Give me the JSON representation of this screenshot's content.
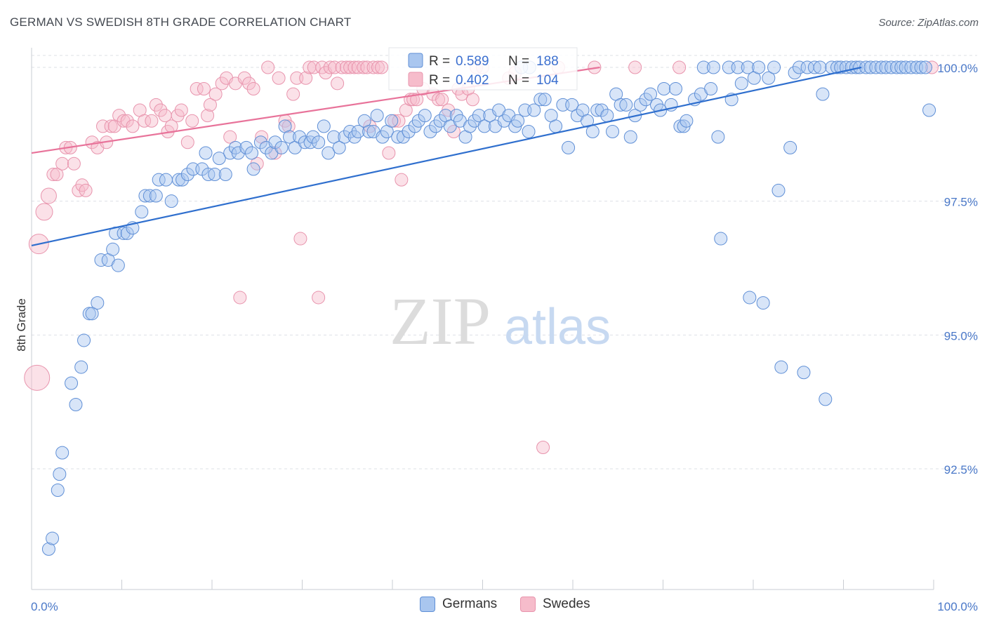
{
  "title": "GERMAN VS SWEDISH 8TH GRADE CORRELATION CHART",
  "source": "Source: ZipAtlas.com",
  "watermark": {
    "zip": "ZIP",
    "atlas": "atlas"
  },
  "colors": {
    "germans_fill": "#a9c6ef",
    "germans_stroke": "#5f8fd6",
    "germans_line": "#2f6fce",
    "swedes_fill": "#f6bccb",
    "swedes_stroke": "#e894ad",
    "swedes_line": "#e8739a",
    "tick_text": "#4a78c8",
    "grid": "#dde0e6"
  },
  "legend": {
    "germans": {
      "r_label": "R =",
      "r_value": "0.589",
      "n_label": "N =",
      "n_value": "188"
    },
    "swedes": {
      "r_label": "R =",
      "r_value": "0.402",
      "n_label": "N =",
      "n_value": "104"
    }
  },
  "bottom_legend": {
    "germans": "Germans",
    "swedes": "Swedes"
  },
  "chart_data": {
    "type": "scatter",
    "title": "GERMAN VS SWEDISH 8TH GRADE CORRELATION CHART",
    "ylabel": "8th Grade",
    "xlabel": "",
    "xlim": [
      0,
      100
    ],
    "ylim": [
      90.25,
      100.35
    ],
    "x_tick_labels": [
      {
        "value": 0,
        "label": "0.0%"
      },
      {
        "value": 100,
        "label": "100.0%"
      }
    ],
    "y_ticks": [
      {
        "value": 100,
        "label": "100.0%"
      },
      {
        "value": 97.5,
        "label": "97.5%"
      },
      {
        "value": 95,
        "label": "95.0%"
      },
      {
        "value": 92.5,
        "label": "92.5%"
      }
    ],
    "grid": "horizontal dashed",
    "legend_position": "top-center",
    "series": [
      {
        "name": "Germans",
        "r": 0.589,
        "n": 188,
        "trendline": [
          [
            0,
            96.67
          ],
          [
            92,
            100.0
          ]
        ],
        "points": [
          [
            1.9,
            91.0
          ],
          [
            2.3,
            91.2
          ],
          [
            2.9,
            92.1
          ],
          [
            3.1,
            92.4
          ],
          [
            3.4,
            92.8
          ],
          [
            4.4,
            94.1
          ],
          [
            4.9,
            93.7
          ],
          [
            5.5,
            94.4
          ],
          [
            5.8,
            94.9
          ],
          [
            6.4,
            95.4
          ],
          [
            6.7,
            95.4
          ],
          [
            7.3,
            95.6
          ],
          [
            7.7,
            96.4
          ],
          [
            8.5,
            96.4
          ],
          [
            9.0,
            96.6
          ],
          [
            9.3,
            96.9
          ],
          [
            9.6,
            96.3
          ],
          [
            10.2,
            96.9
          ],
          [
            10.6,
            96.9
          ],
          [
            11.2,
            97.0
          ],
          [
            12.2,
            97.3
          ],
          [
            12.6,
            97.6
          ],
          [
            13.1,
            97.6
          ],
          [
            13.8,
            97.6
          ],
          [
            14.1,
            97.9
          ],
          [
            14.9,
            97.9
          ],
          [
            15.5,
            97.5
          ],
          [
            16.3,
            97.9
          ],
          [
            16.7,
            97.9
          ],
          [
            17.3,
            98.0
          ],
          [
            17.9,
            98.1
          ],
          [
            18.9,
            98.1
          ],
          [
            19.3,
            98.4
          ],
          [
            19.6,
            98.0
          ],
          [
            20.3,
            98.0
          ],
          [
            20.8,
            98.3
          ],
          [
            21.5,
            98.0
          ],
          [
            22.0,
            98.4
          ],
          [
            22.6,
            98.5
          ],
          [
            22.9,
            98.4
          ],
          [
            23.8,
            98.5
          ],
          [
            24.4,
            98.4
          ],
          [
            24.6,
            98.1
          ],
          [
            25.4,
            98.6
          ],
          [
            26.0,
            98.5
          ],
          [
            26.6,
            98.4
          ],
          [
            27.0,
            98.6
          ],
          [
            27.7,
            98.5
          ],
          [
            28.1,
            98.9
          ],
          [
            28.6,
            98.7
          ],
          [
            29.2,
            98.5
          ],
          [
            29.7,
            98.7
          ],
          [
            30.3,
            98.6
          ],
          [
            30.9,
            98.6
          ],
          [
            31.2,
            98.7
          ],
          [
            31.8,
            98.6
          ],
          [
            32.4,
            98.9
          ],
          [
            32.9,
            98.4
          ],
          [
            33.5,
            98.7
          ],
          [
            34.1,
            98.5
          ],
          [
            34.7,
            98.7
          ],
          [
            35.3,
            98.8
          ],
          [
            35.8,
            98.7
          ],
          [
            36.2,
            98.8
          ],
          [
            36.9,
            99.0
          ],
          [
            37.4,
            98.8
          ],
          [
            37.9,
            98.8
          ],
          [
            38.3,
            99.1
          ],
          [
            38.9,
            98.7
          ],
          [
            39.4,
            98.8
          ],
          [
            39.9,
            99.0
          ],
          [
            40.6,
            98.7
          ],
          [
            41.2,
            98.7
          ],
          [
            41.8,
            98.8
          ],
          [
            42.5,
            98.9
          ],
          [
            42.9,
            99.0
          ],
          [
            43.6,
            99.1
          ],
          [
            44.2,
            98.8
          ],
          [
            44.8,
            98.9
          ],
          [
            45.3,
            99.0
          ],
          [
            45.9,
            99.1
          ],
          [
            46.4,
            98.9
          ],
          [
            47.1,
            99.1
          ],
          [
            47.5,
            99.0
          ],
          [
            48.1,
            98.7
          ],
          [
            48.6,
            98.9
          ],
          [
            49.1,
            99.0
          ],
          [
            49.6,
            99.1
          ],
          [
            50.2,
            98.9
          ],
          [
            50.8,
            99.1
          ],
          [
            51.4,
            98.9
          ],
          [
            51.8,
            99.2
          ],
          [
            52.4,
            99.0
          ],
          [
            52.9,
            99.1
          ],
          [
            53.6,
            98.9
          ],
          [
            53.9,
            99.0
          ],
          [
            54.7,
            99.2
          ],
          [
            55.1,
            98.8
          ],
          [
            55.7,
            99.2
          ],
          [
            56.4,
            99.4
          ],
          [
            56.9,
            99.4
          ],
          [
            57.6,
            99.1
          ],
          [
            58.1,
            98.9
          ],
          [
            58.9,
            99.3
          ],
          [
            59.5,
            98.5
          ],
          [
            59.9,
            99.3
          ],
          [
            60.5,
            99.1
          ],
          [
            61.1,
            99.2
          ],
          [
            61.6,
            99.0
          ],
          [
            62.2,
            98.8
          ],
          [
            62.7,
            99.2
          ],
          [
            63.2,
            99.2
          ],
          [
            63.8,
            99.1
          ],
          [
            64.4,
            98.8
          ],
          [
            64.8,
            99.5
          ],
          [
            65.3,
            99.3
          ],
          [
            65.9,
            99.3
          ],
          [
            66.4,
            98.7
          ],
          [
            66.9,
            99.1
          ],
          [
            67.5,
            99.3
          ],
          [
            68.1,
            99.4
          ],
          [
            68.6,
            99.5
          ],
          [
            69.3,
            99.3
          ],
          [
            69.7,
            99.2
          ],
          [
            70.1,
            99.6
          ],
          [
            70.9,
            99.3
          ],
          [
            71.4,
            99.6
          ],
          [
            71.9,
            98.9
          ],
          [
            72.3,
            98.9
          ],
          [
            72.6,
            99.0
          ],
          [
            73.5,
            99.4
          ],
          [
            74.2,
            99.5
          ],
          [
            74.5,
            100.0
          ],
          [
            75.3,
            99.6
          ],
          [
            75.6,
            100.0
          ],
          [
            76.1,
            98.7
          ],
          [
            76.4,
            96.8
          ],
          [
            77.3,
            100.0
          ],
          [
            77.6,
            99.4
          ],
          [
            78.3,
            100.0
          ],
          [
            78.7,
            99.7
          ],
          [
            79.4,
            100.0
          ],
          [
            79.6,
            95.7
          ],
          [
            80.1,
            99.8
          ],
          [
            80.6,
            100.0
          ],
          [
            81.1,
            95.6
          ],
          [
            81.7,
            99.8
          ],
          [
            82.3,
            100.0
          ],
          [
            82.8,
            97.7
          ],
          [
            83.1,
            94.4
          ],
          [
            84.1,
            98.5
          ],
          [
            84.6,
            99.9
          ],
          [
            85.1,
            100.0
          ],
          [
            85.6,
            94.3
          ],
          [
            86.0,
            100.0
          ],
          [
            86.8,
            100.0
          ],
          [
            87.4,
            100.0
          ],
          [
            87.7,
            99.5
          ],
          [
            88.0,
            93.8
          ],
          [
            88.7,
            100.0
          ],
          [
            89.3,
            100.0
          ],
          [
            89.7,
            100.0
          ],
          [
            90.3,
            100.0
          ],
          [
            90.9,
            100.0
          ],
          [
            91.4,
            100.0
          ],
          [
            91.8,
            100.0
          ],
          [
            92.5,
            100.0
          ],
          [
            93.0,
            100.0
          ],
          [
            93.6,
            100.0
          ],
          [
            94.2,
            100.0
          ],
          [
            94.7,
            100.0
          ],
          [
            95.3,
            100.0
          ],
          [
            95.9,
            100.0
          ],
          [
            96.4,
            100.0
          ],
          [
            96.9,
            100.0
          ],
          [
            97.5,
            100.0
          ],
          [
            98.1,
            100.0
          ],
          [
            98.6,
            100.0
          ],
          [
            99.1,
            100.0
          ],
          [
            99.5,
            99.2
          ],
          [
            55.2,
            100.0
          ],
          [
            54.3,
            100.0
          ]
        ]
      },
      {
        "name": "Swedes",
        "r": 0.402,
        "n": 104,
        "trendline": [
          [
            0,
            98.4
          ],
          [
            63,
            100.0
          ]
        ],
        "points": [
          [
            0.6,
            94.2
          ],
          [
            0.8,
            96.7
          ],
          [
            1.4,
            97.3
          ],
          [
            1.9,
            97.6
          ],
          [
            2.4,
            98.0
          ],
          [
            2.8,
            98.0
          ],
          [
            3.4,
            98.2
          ],
          [
            3.8,
            98.5
          ],
          [
            4.3,
            98.5
          ],
          [
            4.7,
            98.2
          ],
          [
            5.2,
            97.7
          ],
          [
            5.6,
            97.8
          ],
          [
            6.0,
            97.7
          ],
          [
            6.7,
            98.6
          ],
          [
            7.3,
            98.5
          ],
          [
            7.9,
            98.9
          ],
          [
            8.3,
            98.6
          ],
          [
            8.8,
            98.9
          ],
          [
            9.2,
            98.9
          ],
          [
            9.7,
            99.1
          ],
          [
            10.2,
            99.0
          ],
          [
            10.6,
            99.0
          ],
          [
            11.2,
            98.9
          ],
          [
            12.0,
            99.2
          ],
          [
            12.5,
            99.0
          ],
          [
            13.3,
            99.0
          ],
          [
            13.8,
            99.3
          ],
          [
            14.3,
            99.2
          ],
          [
            14.8,
            99.1
          ],
          [
            15.1,
            98.8
          ],
          [
            15.5,
            98.9
          ],
          [
            16.2,
            99.1
          ],
          [
            16.6,
            99.2
          ],
          [
            17.3,
            98.6
          ],
          [
            17.8,
            99.0
          ],
          [
            18.3,
            99.6
          ],
          [
            19.1,
            99.6
          ],
          [
            19.5,
            99.1
          ],
          [
            19.8,
            99.3
          ],
          [
            20.4,
            99.5
          ],
          [
            21.1,
            99.7
          ],
          [
            21.6,
            99.8
          ],
          [
            22.0,
            98.7
          ],
          [
            22.6,
            99.7
          ],
          [
            23.1,
            95.7
          ],
          [
            23.6,
            99.8
          ],
          [
            24.1,
            99.7
          ],
          [
            24.6,
            99.6
          ],
          [
            25.0,
            98.2
          ],
          [
            25.5,
            98.7
          ],
          [
            26.2,
            100.0
          ],
          [
            27.0,
            98.4
          ],
          [
            27.4,
            99.8
          ],
          [
            28.1,
            99.0
          ],
          [
            28.5,
            98.9
          ],
          [
            29.0,
            99.5
          ],
          [
            29.4,
            99.8
          ],
          [
            29.8,
            96.8
          ],
          [
            30.4,
            99.8
          ],
          [
            30.8,
            100.0
          ],
          [
            31.3,
            100.0
          ],
          [
            31.8,
            95.7
          ],
          [
            32.2,
            100.0
          ],
          [
            32.6,
            99.9
          ],
          [
            33.1,
            100.0
          ],
          [
            33.6,
            100.0
          ],
          [
            33.9,
            99.7
          ],
          [
            34.4,
            100.0
          ],
          [
            34.9,
            100.0
          ],
          [
            35.3,
            100.0
          ],
          [
            35.8,
            100.0
          ],
          [
            36.2,
            100.0
          ],
          [
            36.8,
            100.0
          ],
          [
            37.2,
            100.0
          ],
          [
            37.5,
            98.9
          ],
          [
            37.9,
            100.0
          ],
          [
            38.4,
            100.0
          ],
          [
            38.8,
            100.0
          ],
          [
            39.6,
            98.4
          ],
          [
            40.2,
            99.0
          ],
          [
            40.7,
            99.0
          ],
          [
            41.0,
            97.9
          ],
          [
            41.5,
            99.2
          ],
          [
            42.0,
            99.4
          ],
          [
            42.3,
            99.4
          ],
          [
            42.7,
            99.4
          ],
          [
            43.4,
            99.6
          ],
          [
            44.5,
            99.5
          ],
          [
            45.1,
            99.4
          ],
          [
            45.5,
            99.4
          ],
          [
            46.2,
            99.2
          ],
          [
            46.8,
            98.8
          ],
          [
            47.3,
            99.6
          ],
          [
            47.7,
            99.5
          ],
          [
            48.4,
            99.6
          ],
          [
            48.9,
            99.4
          ],
          [
            49.3,
            100.0
          ],
          [
            50.0,
            100.0
          ],
          [
            52.9,
            99.8
          ],
          [
            53.6,
            99.9
          ],
          [
            56.7,
            92.9
          ],
          [
            62.4,
            100.0
          ],
          [
            66.9,
            100.0
          ],
          [
            71.8,
            100.0
          ],
          [
            99.8,
            100.0
          ],
          [
            58.4,
            100.0
          ]
        ]
      }
    ]
  }
}
